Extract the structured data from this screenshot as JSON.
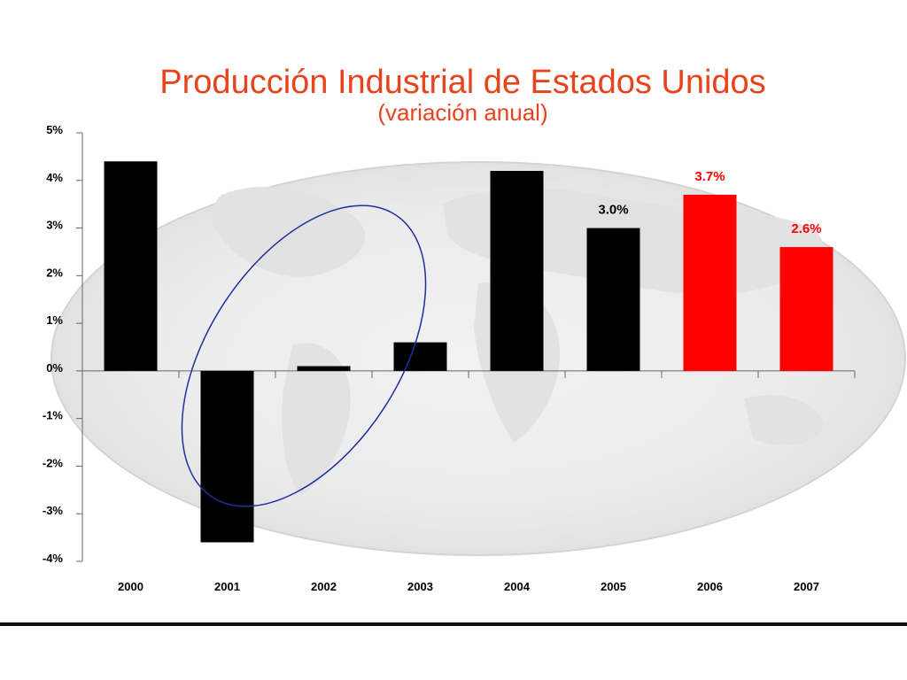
{
  "title": "Producción Industrial de Estados Unidos",
  "subtitle": "(variación anual)",
  "colors": {
    "title": "#e8431c",
    "bar_default": "#000000",
    "bar_highlight": "#ff0000",
    "ellipse": "#1f2fa0"
  },
  "chart_data": {
    "type": "bar",
    "title": "Producción Industrial de Estados Unidos",
    "subtitle": "(variación anual)",
    "categories": [
      "2000",
      "2001",
      "2002",
      "2003",
      "2004",
      "2005",
      "2006",
      "2007"
    ],
    "values": [
      4.4,
      -3.6,
      0.1,
      0.6,
      4.2,
      3.0,
      3.7,
      2.6
    ],
    "highlight_categories": [
      "2006",
      "2007"
    ],
    "data_labels": [
      {
        "category": "2005",
        "text": "3.0%",
        "color": "#000000"
      },
      {
        "category": "2006",
        "text": "3.7%",
        "color": "#ff0000"
      },
      {
        "category": "2007",
        "text": "2.6%",
        "color": "#ff0000"
      }
    ],
    "y_ticks": [
      5,
      4,
      3,
      2,
      1,
      0,
      -1,
      -2,
      -3,
      -4
    ],
    "y_tick_labels": [
      "5%",
      "4%",
      "3%",
      "2%",
      "1%",
      "0%",
      "-1%",
      "-2%",
      "-3%",
      "-4%"
    ],
    "ylim": [
      -4,
      5
    ],
    "xlabel": "",
    "ylabel": "",
    "grid": false,
    "legend": "none",
    "annotation": "ellipse around 2001-2003"
  }
}
